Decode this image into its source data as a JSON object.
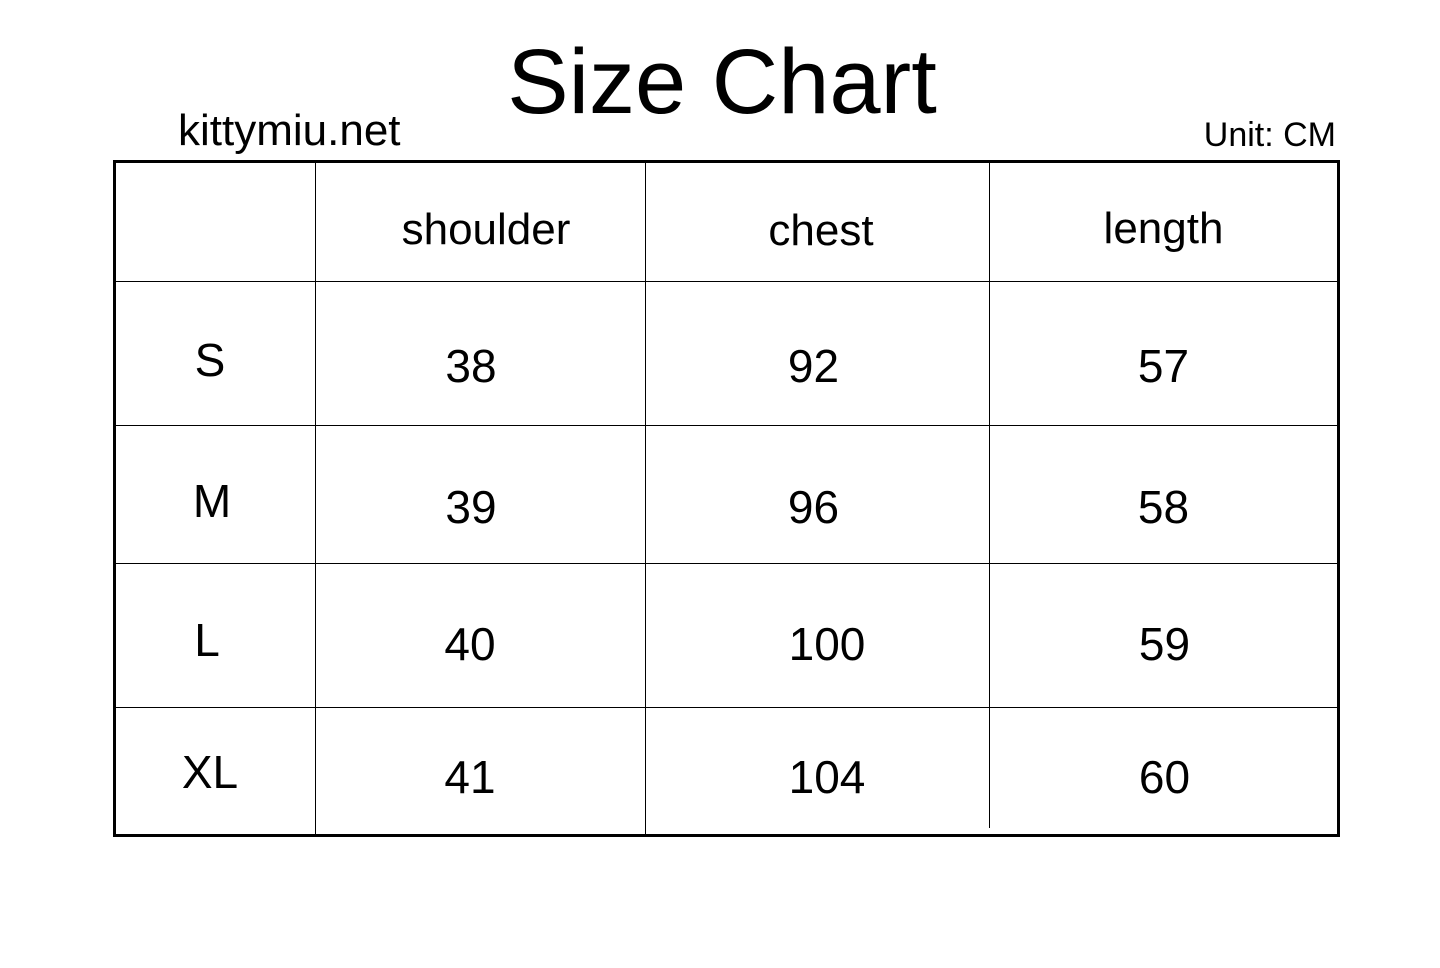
{
  "title": "Size Chart",
  "site": "kittymiu.net",
  "unit": "Unit: CM",
  "table": {
    "headers": [
      "",
      "shoulder",
      "chest",
      "length"
    ],
    "rows": [
      {
        "size": "S",
        "values": [
          "38",
          "92",
          "57"
        ]
      },
      {
        "size": "M",
        "values": [
          "39",
          "96",
          "58"
        ]
      },
      {
        "size": "L",
        "values": [
          "40",
          "100",
          "59"
        ]
      },
      {
        "size": "XL",
        "values": [
          "41",
          "104",
          "60"
        ]
      }
    ]
  }
}
